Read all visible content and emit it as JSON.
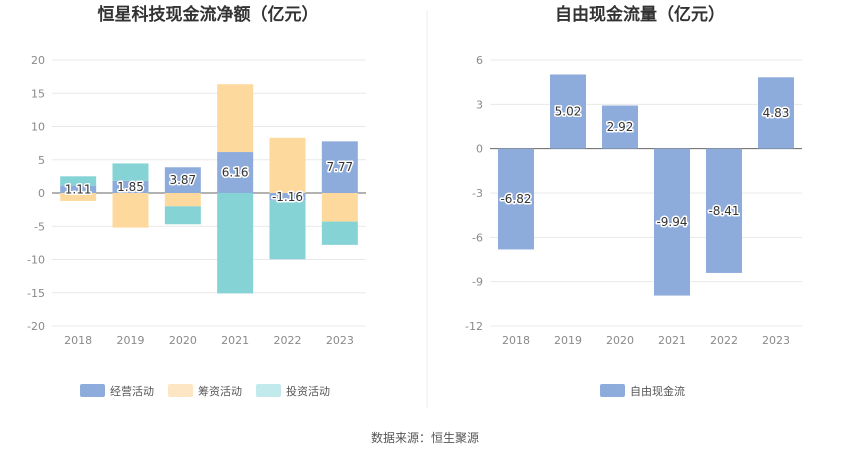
{
  "source_text": "数据来源：恒生聚源",
  "chart_data": [
    {
      "type": "bar",
      "stacked": true,
      "title": "恒星科技现金流净额（亿元）",
      "categories": [
        "2018",
        "2019",
        "2020",
        "2021",
        "2022",
        "2023"
      ],
      "ylim": [
        -20,
        20
      ],
      "yticks": [
        20,
        15,
        10,
        5,
        0,
        -5,
        -10,
        -15,
        -20
      ],
      "grid": true,
      "legend_position": "bottom",
      "labeled_series": "经营活动",
      "series": [
        {
          "name": "经营活动",
          "color": "#8eacdb",
          "values": [
            1.11,
            1.85,
            3.87,
            6.16,
            -1.16,
            7.77
          ]
        },
        {
          "name": "筹资活动",
          "color": "#fdd99e",
          "values": [
            -1.2,
            -5.2,
            -2.0,
            10.2,
            8.3,
            -4.3
          ]
        },
        {
          "name": "投资活动",
          "color": "#86d3d6",
          "values": [
            1.4,
            2.6,
            -2.7,
            -15.1,
            -8.8,
            -3.5
          ]
        }
      ],
      "data_labels": [
        "1.11",
        "1.85",
        "3.87",
        "6.16",
        "-1.16",
        "7.77"
      ]
    },
    {
      "type": "bar",
      "title": "自由现金流量（亿元）",
      "categories": [
        "2018",
        "2019",
        "2020",
        "2021",
        "2022",
        "2023"
      ],
      "ylim": [
        -12,
        6
      ],
      "yticks": [
        6,
        3,
        0,
        -3,
        -6,
        -9,
        -12
      ],
      "grid": true,
      "legend_position": "bottom",
      "series": [
        {
          "name": "自由现金流",
          "color": "#8eacdb",
          "values": [
            -6.82,
            5.02,
            2.92,
            -9.94,
            -8.41,
            4.83
          ]
        }
      ],
      "data_labels": [
        "-6.82",
        "5.02",
        "2.92",
        "-9.94",
        "-8.41",
        "4.83"
      ]
    }
  ]
}
